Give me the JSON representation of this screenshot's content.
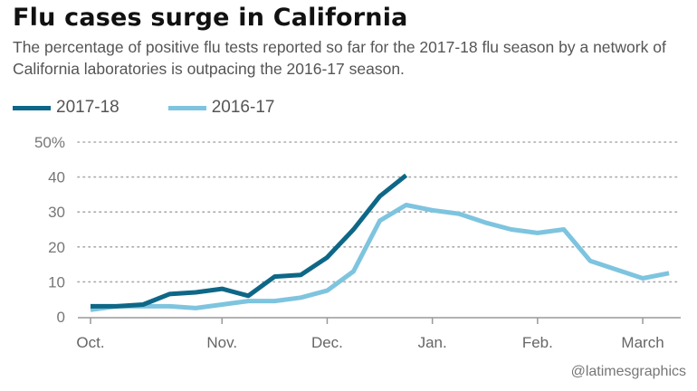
{
  "chart_data": {
    "type": "line",
    "title": "Flu cases surge in California",
    "subtitle": "The percentage of positive flu tests reported so far for the 2017-18 flu season by a network of California laboratories is outpacing the 2016-17 season.",
    "xlabel": "",
    "ylabel": "",
    "ylim": [
      0,
      50
    ],
    "yticks": [
      0,
      10,
      20,
      30,
      40,
      50
    ],
    "ytick_labels": [
      "0",
      "10",
      "20",
      "30",
      "40",
      "50%"
    ],
    "x_unit": "weeks since start of October",
    "xticks": [
      {
        "label": "Oct.",
        "week": 0
      },
      {
        "label": "Nov.",
        "week": 5
      },
      {
        "label": "Dec.",
        "week": 9
      },
      {
        "label": "Jan.",
        "week": 13
      },
      {
        "label": "Feb.",
        "week": 17
      },
      {
        "label": "March",
        "week": 21
      }
    ],
    "grid": true,
    "legend_position": "top-left",
    "series": [
      {
        "name": "2017-18",
        "color": "#0e6787",
        "weeks": [
          0,
          1,
          2,
          3,
          4,
          5,
          6,
          7,
          8,
          9,
          10,
          11,
          12
        ],
        "values": [
          3,
          3,
          3.5,
          6.5,
          7,
          8,
          6,
          11.5,
          12,
          17,
          25,
          34.5,
          40.5
        ]
      },
      {
        "name": "2016-17",
        "color": "#7ec4df",
        "weeks": [
          0,
          1,
          2,
          3,
          4,
          5,
          6,
          7,
          8,
          9,
          10,
          11,
          12,
          13,
          14,
          15,
          16,
          17,
          18,
          19,
          20,
          21,
          22
        ],
        "values": [
          2,
          3,
          3,
          3,
          2.5,
          3.5,
          4.5,
          4.5,
          5.5,
          7.5,
          13,
          27.5,
          32,
          30.5,
          29.5,
          27,
          25,
          24,
          25,
          16,
          13.5,
          11,
          12.5
        ]
      }
    ]
  },
  "credit": "@latimesgraphics"
}
